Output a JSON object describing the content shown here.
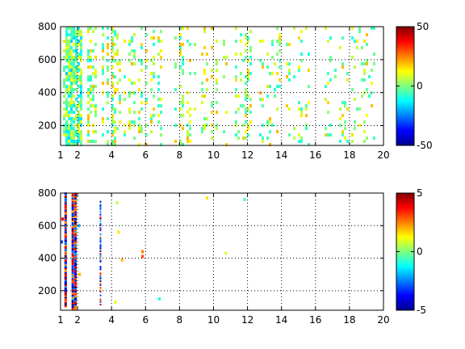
{
  "chart_data": [
    {
      "type": "heatmap",
      "title": "",
      "xlabel": "",
      "ylabel": "",
      "xlim": [
        1,
        20
      ],
      "ylim": [
        80,
        800
      ],
      "xticks": [
        1,
        2,
        4,
        6,
        8,
        10,
        12,
        14,
        16,
        18,
        20
      ],
      "xtick_labels": [
        "1",
        "2",
        "4",
        "6",
        "8",
        "10",
        "12",
        "14",
        "16",
        "18",
        "20"
      ],
      "yticks": [
        200,
        400,
        600,
        800
      ],
      "ytick_labels": [
        "200",
        "400",
        "600",
        "800"
      ],
      "grid": true,
      "colormap": "jet",
      "clim": [
        -50,
        50
      ],
      "colorbar_ticks": [
        50,
        0,
        -50
      ],
      "colorbar_labels": [
        "50",
        "0",
        "-50"
      ],
      "missing_color": "#ffffff",
      "pattern": "dense scattered cells concentrated near x=1.2-2.2 (cyan / light-green, values mostly -15..15), becoming sparser toward x=20 with vertical streaks at even x positions",
      "dense_band_x": [
        1.15,
        2.25
      ],
      "fill_density_near_band": 0.8,
      "fill_density_far": 0.3
    },
    {
      "type": "heatmap",
      "title": "",
      "xlabel": "",
      "ylabel": "",
      "xlim": [
        1,
        20
      ],
      "ylim": [
        80,
        800
      ],
      "xticks": [
        1,
        2,
        4,
        6,
        8,
        10,
        12,
        14,
        16,
        18,
        20
      ],
      "xtick_labels": [
        "1",
        "2",
        "4",
        "6",
        "8",
        "10",
        "12",
        "14",
        "16",
        "18",
        "20"
      ],
      "yticks": [
        200,
        400,
        600,
        800
      ],
      "ytick_labels": [
        "200",
        "400",
        "600",
        "800"
      ],
      "grid": true,
      "colormap": "jet",
      "clim": [
        -5,
        5
      ],
      "colorbar_ticks": [
        5,
        0,
        -5
      ],
      "colorbar_labels": [
        "5",
        "0",
        "-5"
      ],
      "missing_color": "#ffffff",
      "pattern": "mostly empty; strong alternating red/blue vertical streaks at x~1.3 and x~1.7-1.9; sparse cells near x~3.3, x~4.2, x~5.8 and isolated cells elsewhere",
      "streaks": [
        {
          "x": 1.3,
          "y_from": 100,
          "y_to": 800
        },
        {
          "x": 1.72,
          "y_from": 80,
          "y_to": 800
        },
        {
          "x": 1.88,
          "y_from": 80,
          "y_to": 800
        },
        {
          "x": 3.35,
          "y_from": 80,
          "y_to": 760
        }
      ],
      "isolated_cells": [
        {
          "x": 4.3,
          "y": 740,
          "v": 0.5
        },
        {
          "x": 4.4,
          "y": 560,
          "v": 1.5
        },
        {
          "x": 5.8,
          "y": 440,
          "v": 2.5
        },
        {
          "x": 5.8,
          "y": 410,
          "v": 3
        },
        {
          "x": 4.6,
          "y": 390,
          "v": 2
        },
        {
          "x": 4.2,
          "y": 130,
          "v": 1
        },
        {
          "x": 6.8,
          "y": 150,
          "v": -1
        },
        {
          "x": 9.6,
          "y": 770,
          "v": 1.5
        },
        {
          "x": 10.7,
          "y": 430,
          "v": 0.8
        },
        {
          "x": 11.8,
          "y": 760,
          "v": -0.5
        },
        {
          "x": 1.05,
          "y": 500,
          "v": -3
        },
        {
          "x": 1.1,
          "y": 640,
          "v": 4
        },
        {
          "x": 2.05,
          "y": 600,
          "v": -2
        },
        {
          "x": 2.1,
          "y": 300,
          "v": 2
        }
      ]
    }
  ]
}
